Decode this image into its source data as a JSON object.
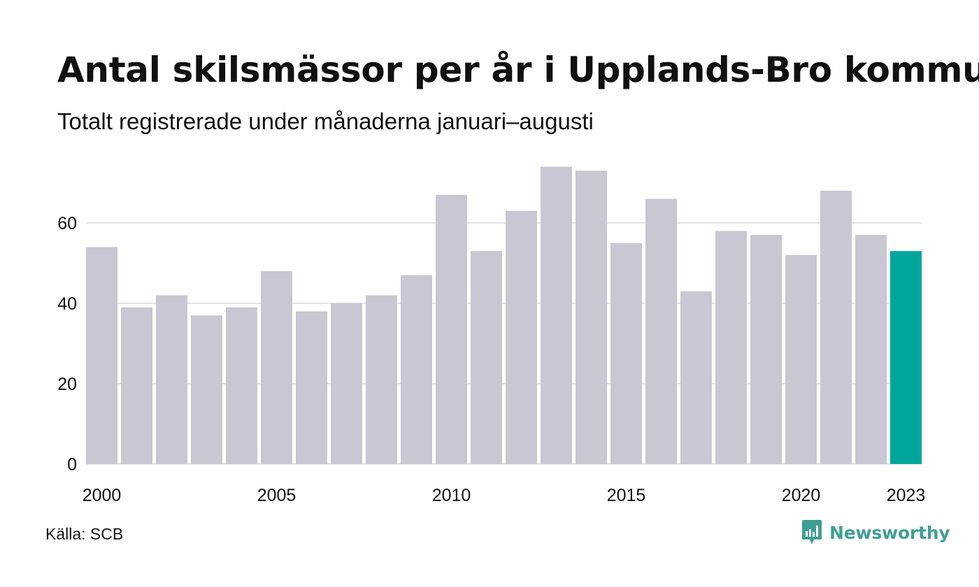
{
  "header": {
    "title": "Antal skilsmässor per år i Upplands-Bro kommun",
    "subtitle": "Totalt registrerade under månaderna januari–augusti"
  },
  "footer": {
    "source": "Källa: SCB",
    "logo_text": "Newsworthy",
    "logo_icon": "newsworthy-chart-bubble-icon"
  },
  "colors": {
    "bar_default": "#c8c7d2",
    "bar_highlight": "#00a69b",
    "grid": "#e4e4ea",
    "text": "#111111",
    "brand": "#3f9e94"
  },
  "chart_data": {
    "type": "bar",
    "title": "Antal skilsmässor per år i Upplands-Bro kommun",
    "subtitle": "Totalt registrerade under månaderna januari–augusti",
    "categories": [
      "2000",
      "2001",
      "2002",
      "2003",
      "2004",
      "2005",
      "2006",
      "2007",
      "2008",
      "2009",
      "2010",
      "2011",
      "2012",
      "2013",
      "2014",
      "2015",
      "2016",
      "2017",
      "2018",
      "2019",
      "2020",
      "2021",
      "2022",
      "2023"
    ],
    "values": [
      54,
      39,
      42,
      37,
      39,
      48,
      38,
      40,
      42,
      47,
      67,
      53,
      63,
      74,
      73,
      55,
      66,
      43,
      58,
      57,
      52,
      68,
      57,
      53
    ],
    "highlight": "2023",
    "x_tick_labels": [
      "2000",
      "2005",
      "2010",
      "2015",
      "2020",
      "2023"
    ],
    "y_ticks": [
      0,
      20,
      40,
      60
    ],
    "ylim": [
      0,
      74
    ],
    "xlabel": "",
    "ylabel": "",
    "grid": true,
    "legend": "none"
  }
}
